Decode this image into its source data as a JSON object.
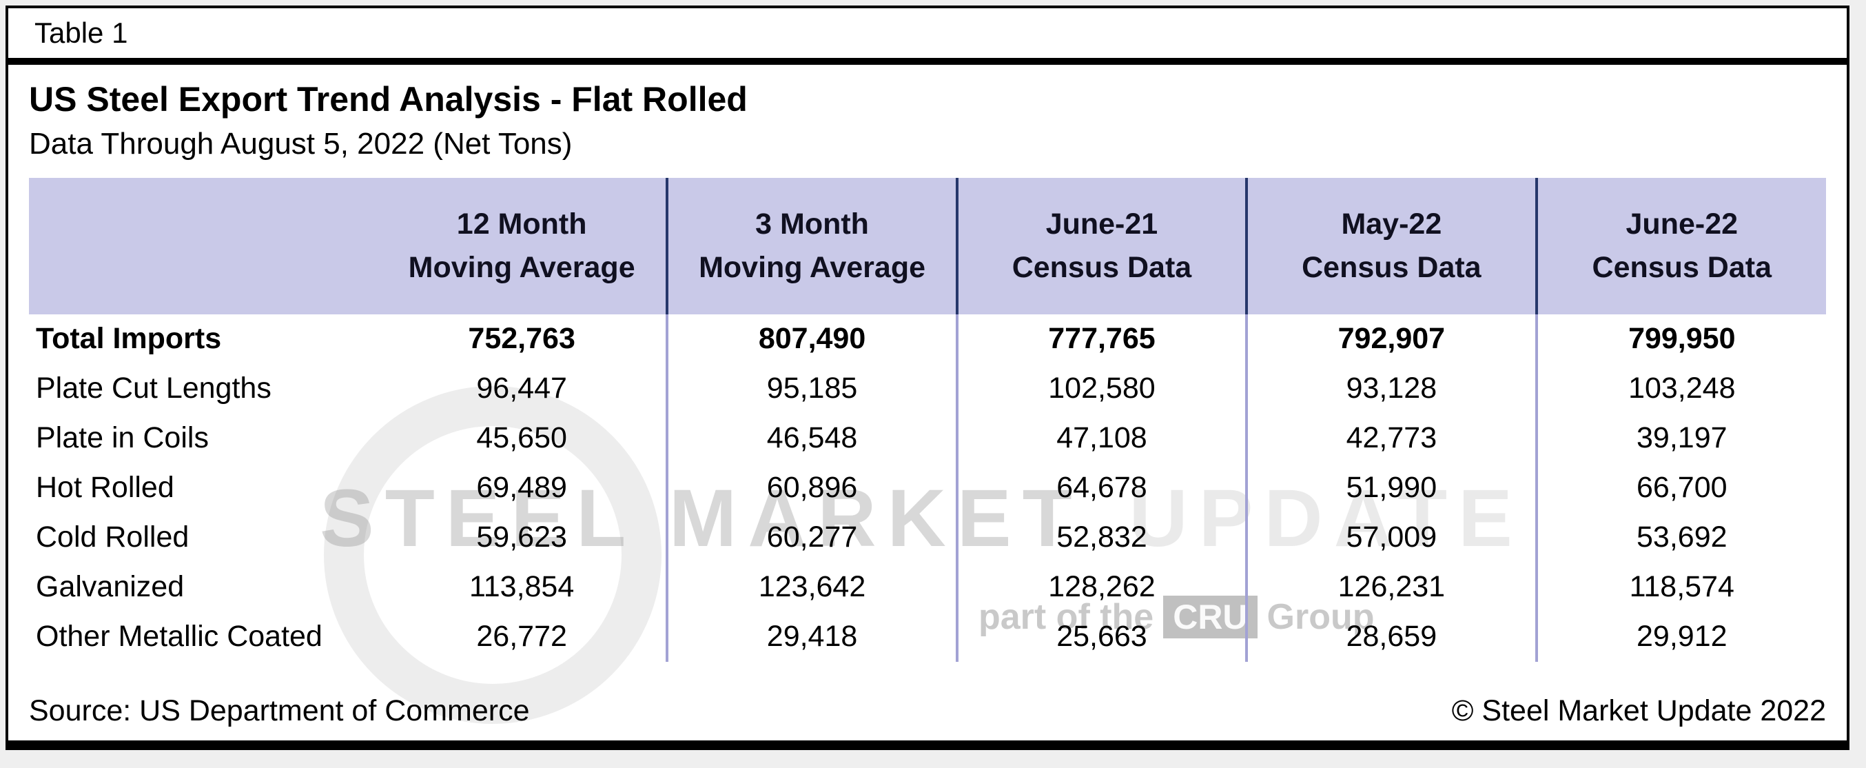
{
  "page_label": "Table 1",
  "title": "US Steel Export Trend Analysis - Flat Rolled",
  "subtitle": "Data Through August 5, 2022 (Net Tons)",
  "table": {
    "headers": [
      {
        "line1": "12 Month",
        "line2": "Moving Average"
      },
      {
        "line1": "3 Month",
        "line2": "Moving Average"
      },
      {
        "line1": "June-21",
        "line2": "Census Data"
      },
      {
        "line1": "May-22",
        "line2": "Census Data"
      },
      {
        "line1": "June-22",
        "line2": "Census Data"
      }
    ],
    "rows": [
      {
        "label": "Total Imports",
        "values": [
          "752,763",
          "807,490",
          "777,765",
          "792,907",
          "799,950"
        ]
      },
      {
        "label": "Plate Cut Lengths",
        "values": [
          "96,447",
          "95,185",
          "102,580",
          "93,128",
          "103,248"
        ]
      },
      {
        "label": "Plate in Coils",
        "values": [
          "45,650",
          "46,548",
          "47,108",
          "42,773",
          "39,197"
        ]
      },
      {
        "label": "Hot Rolled",
        "values": [
          "69,489",
          "60,896",
          "64,678",
          "51,990",
          "66,700"
        ]
      },
      {
        "label": "Cold Rolled",
        "values": [
          "59,623",
          "60,277",
          "52,832",
          "57,009",
          "53,692"
        ]
      },
      {
        "label": "Galvanized",
        "values": [
          "113,854",
          "123,642",
          "128,262",
          "126,231",
          "118,574"
        ]
      },
      {
        "label": "Other Metallic Coated",
        "values": [
          "26,772",
          "29,418",
          "25,663",
          "28,659",
          "29,912"
        ]
      }
    ]
  },
  "chart_data": {
    "type": "table",
    "title": "US Steel Export Trend Analysis - Flat Rolled",
    "subtitle": "Data Through August 5, 2022 (Net Tons)",
    "units": "Net Tons",
    "columns": [
      "12 Month Moving Average",
      "3 Month Moving Average",
      "June-21 Census Data",
      "May-22 Census Data",
      "June-22 Census Data"
    ],
    "rows": [
      {
        "category": "Total Imports",
        "values": [
          752763,
          807490,
          777765,
          792907,
          799950
        ]
      },
      {
        "category": "Plate Cut Lengths",
        "values": [
          96447,
          95185,
          102580,
          93128,
          103248
        ]
      },
      {
        "category": "Plate in Coils",
        "values": [
          45650,
          46548,
          47108,
          42773,
          39197
        ]
      },
      {
        "category": "Hot Rolled",
        "values": [
          69489,
          60896,
          64678,
          51990,
          66700
        ]
      },
      {
        "category": "Cold Rolled",
        "values": [
          59623,
          60277,
          52832,
          57009,
          53692
        ]
      },
      {
        "category": "Galvanized",
        "values": [
          113854,
          123642,
          128262,
          126231,
          118574
        ]
      },
      {
        "category": "Other Metallic Coated",
        "values": [
          26772,
          29418,
          25663,
          28659,
          29912
        ]
      }
    ]
  },
  "footer": {
    "source": "Source: US Department of Commerce",
    "copyright": "© Steel Market Update 2022"
  },
  "watermark": {
    "brand_bold": "STEEL MARKET",
    "brand_light": "UPDATE",
    "tagline_prefix": "part of the",
    "tagline_box": "CRU",
    "tagline_suffix": "Group"
  },
  "colors": {
    "header_band": "#c9c9e8",
    "header_divider": "#26376b",
    "body_divider": "#a2a2d4",
    "frame_border": "#000000",
    "background": "#efefef"
  }
}
